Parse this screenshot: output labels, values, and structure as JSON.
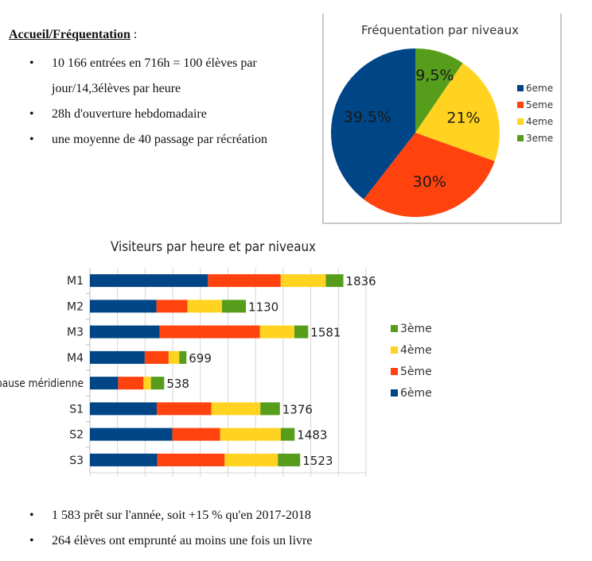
{
  "document": {
    "heading": "Accueil/Fréquentation",
    "heading_suffix": " :",
    "top_bullets": [
      "10 166 entrées en 716h = 100 élèves par jour/14,3élèves par heure",
      "28h d'ouverture hebdomadaire",
      "une moyenne de 40 passage par récréation"
    ],
    "bottom_bullets": [
      "1 583 prêt sur l'année, soit +15 % qu'en 2017-2018",
      "264 élèves ont emprunté au moins une fois un livre"
    ]
  },
  "colors": {
    "6eme": "#004586",
    "5eme": "#ff420e",
    "4eme": "#ffd320",
    "3eme": "#579d1c"
  },
  "chart_data": [
    {
      "type": "pie",
      "title": "Fréquentation par niveaux",
      "categories": [
        "6eme",
        "5eme",
        "4eme",
        "3eme"
      ],
      "values": [
        39.5,
        30,
        21,
        9.5
      ],
      "labels": [
        "39.5%",
        "30%",
        "21%",
        "9,5%"
      ],
      "legend_position": "right",
      "legend": [
        "6eme",
        "5eme",
        "4eme",
        "3eme"
      ]
    },
    {
      "type": "bar",
      "orientation": "horizontal",
      "stacked": true,
      "title": "Visiteurs par heure et par niveaux",
      "categories": [
        "M1",
        "M2",
        "M3",
        "M4",
        "pause méridienne",
        "S1",
        "S2",
        "S3"
      ],
      "series": [
        {
          "name": "6ème",
          "key": "6eme",
          "values": [
            855,
            482,
            505,
            397,
            204,
            484,
            597,
            488
          ]
        },
        {
          "name": "5ème",
          "key": "5eme",
          "values": [
            527,
            225,
            726,
            173,
            184,
            396,
            346,
            488
          ]
        },
        {
          "name": "4ème",
          "key": "4eme",
          "values": [
            327,
            250,
            250,
            77,
            54,
            355,
            440,
            386
          ]
        },
        {
          "name": "3ème",
          "key": "3eme",
          "values": [
            127,
            173,
            100,
            52,
            96,
            141,
            100,
            161
          ]
        }
      ],
      "totals": [
        1836,
        1130,
        1581,
        699,
        538,
        1376,
        1483,
        1523
      ],
      "xlim": [
        0,
        2000
      ],
      "x_grid_step": 200,
      "grid": true,
      "legend_position": "right",
      "legend": [
        "3ème",
        "4ème",
        "5ème",
        "6ème"
      ],
      "xlabel": "",
      "ylabel": ""
    }
  ]
}
